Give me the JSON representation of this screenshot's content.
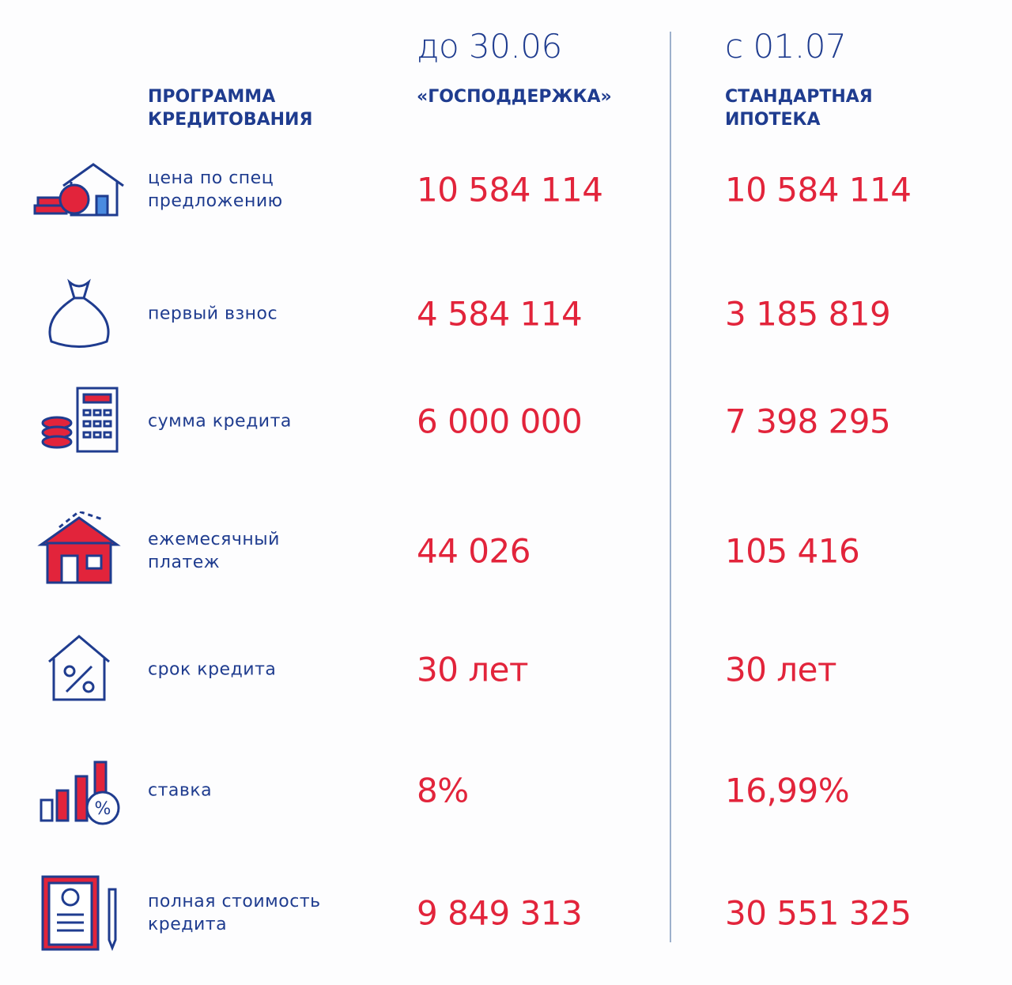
{
  "header": {
    "program_label": [
      "ПРОГРАММА",
      "КРЕДИТОВАНИЯ"
    ],
    "columns": [
      {
        "date": "до 30.06",
        "program": [
          "«ГОСПОДДЕРЖКА»"
        ]
      },
      {
        "date": "с 01.07",
        "program": [
          "СТАНДАРТНАЯ",
          "ИПОТЕКА"
        ]
      }
    ]
  },
  "rows": [
    {
      "label": [
        "цена по спец",
        "предложению"
      ],
      "values": [
        "10 584 114",
        "10 584 114"
      ]
    },
    {
      "label": [
        "первый взнос"
      ],
      "values": [
        "4 584 114",
        "3 185 819"
      ]
    },
    {
      "label": [
        "сумма кредита"
      ],
      "values": [
        "6 000 000",
        "7 398 295"
      ]
    },
    {
      "label": [
        "ежемесячный",
        "платеж"
      ],
      "values": [
        "44 026",
        "105 416"
      ]
    },
    {
      "label": [
        "срок кредита"
      ],
      "values": [
        "30 лет",
        "30 лет"
      ]
    },
    {
      "label": [
        "ставка"
      ],
      "values": [
        "8%",
        "16,99%"
      ]
    },
    {
      "label": [
        "полная стоимость",
        "кредита"
      ],
      "values": [
        "9 849 313",
        "30 551 325"
      ]
    }
  ]
}
